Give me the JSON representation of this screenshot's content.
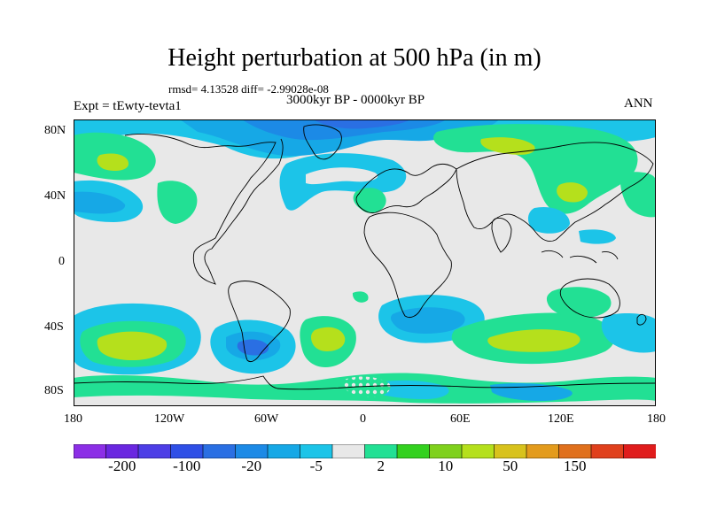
{
  "title": "Height perturbation at 500 hPa (in m)",
  "stats": {
    "rmsd": "rmsd= 4.13528 diff= -2.99028e-08"
  },
  "experiment": "Expt = tEwty-tevta1",
  "period": "3000kyr BP - 0000kyr BP",
  "season": "ANN",
  "latitude_labels": [
    "80N",
    "40N",
    "0",
    "40S",
    "80S"
  ],
  "longitude_labels": [
    "180",
    "120W",
    "60W",
    "0",
    "60E",
    "120E",
    "180"
  ],
  "colorbar": {
    "colors": [
      "#8c2fe6",
      "#6a27e0",
      "#4d3ee6",
      "#2f4fe6",
      "#2a6fe3",
      "#1c8ae6",
      "#16a8e6",
      "#1cc4e8",
      "#e8e8e8",
      "#22e094",
      "#33d11f",
      "#7fd11c",
      "#b5e01c",
      "#d8c21c",
      "#e39b1c",
      "#e0701c",
      "#e0401c",
      "#e01c1c"
    ],
    "labels": [
      "-200",
      "-100",
      "-20",
      "-5",
      "2",
      "10",
      "50",
      "150"
    ]
  },
  "palette": {
    "neutral": "#e8e8e8",
    "light_blue": "#1cc4e8",
    "mid_blue": "#16a8e6",
    "blue": "#1c8ae6",
    "dark_blue": "#2a6fe3",
    "deep_blue": "#2f4fe6",
    "teal_green": "#22e094",
    "green": "#33d11f",
    "yellow_green": "#b5e01c",
    "yellow": "#d8c21c"
  }
}
